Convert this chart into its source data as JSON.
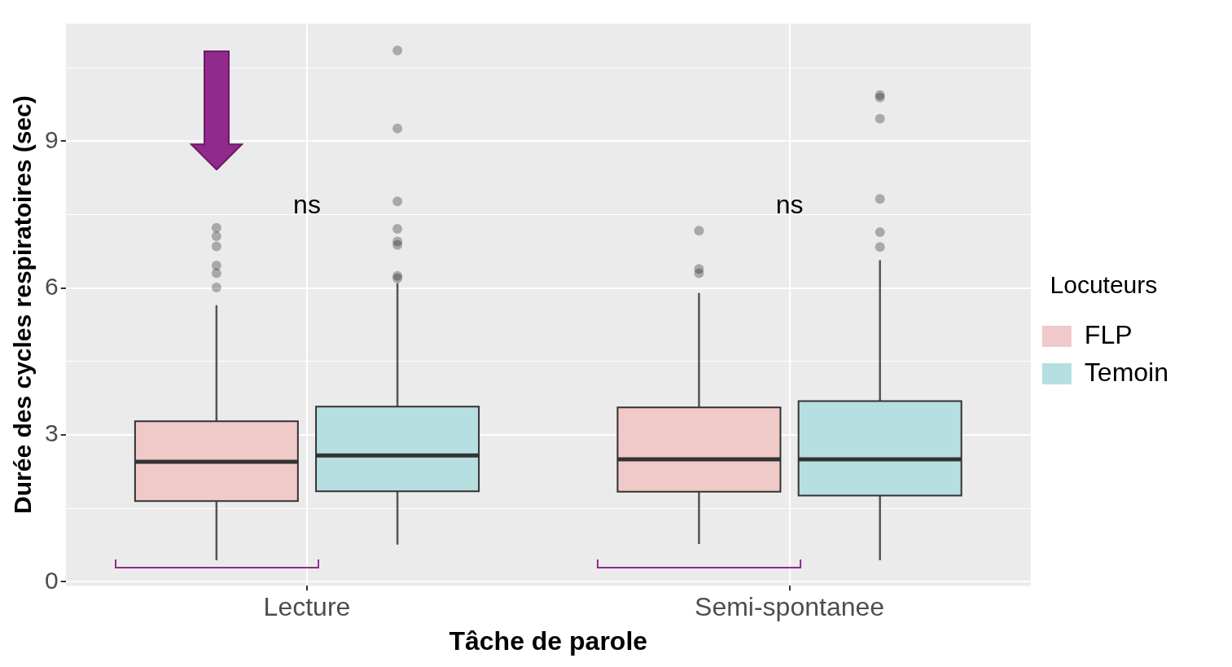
{
  "chart_data": {
    "type": "box",
    "xlabel": "Tâche de parole",
    "ylabel": "Durée des cycles respiratoires (sec)",
    "legend_title": "Locuteurs",
    "legend": "right",
    "grid": true,
    "categories": [
      "Lecture",
      "Semi-spontanee"
    ],
    "ylim": [
      -0.08,
      11.4
    ],
    "yticks": [
      0,
      {
        "value": 1.5,
        "label": null
      },
      3,
      {
        "value": 4.5,
        "label": null
      },
      6,
      {
        "value": 7.5,
        "label": null
      },
      9,
      {
        "value": 10.5,
        "label": null
      }
    ],
    "series": [
      {
        "name": "FLP",
        "color": "#f0c9c9",
        "boxes": [
          {
            "low": 0.44,
            "q1": 1.65,
            "median": 2.45,
            "q3": 3.28,
            "high": 5.65,
            "outliers": [
              7.23,
              7.06,
              6.85,
              6.46,
              6.3,
              6.01
            ]
          },
          {
            "low": 0.77,
            "q1": 1.84,
            "median": 2.5,
            "q3": 3.56,
            "high": 5.9,
            "outliers": [
              7.17,
              6.39,
              6.3
            ]
          }
        ]
      },
      {
        "name": "Temoin",
        "color": "#b5dfe0",
        "boxes": [
          {
            "low": 0.76,
            "q1": 1.85,
            "median": 2.58,
            "q3": 3.58,
            "high": 6.1,
            "outliers": [
              10.85,
              9.26,
              7.77,
              7.21,
              6.95,
              6.88,
              6.25,
              6.2
            ]
          },
          {
            "low": 0.44,
            "q1": 1.76,
            "median": 2.5,
            "q3": 3.69,
            "high": 6.57,
            "outliers": [
              9.94,
              9.89,
              9.46,
              7.82,
              7.14,
              6.84
            ]
          }
        ]
      }
    ],
    "annotations": [
      "ns",
      "ns"
    ]
  }
}
